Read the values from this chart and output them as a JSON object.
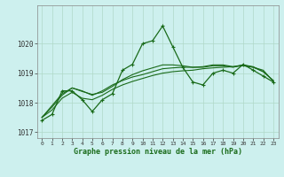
{
  "title": "Graphe pression niveau de la mer (hPa)",
  "background_color": "#cdf0ee",
  "grid_color": "#b0d8c8",
  "line_color": "#1a6b1a",
  "ylim": [
    1016.8,
    1021.3
  ],
  "yticks": [
    1017,
    1018,
    1019,
    1020
  ],
  "xticks": [
    0,
    1,
    2,
    3,
    4,
    5,
    6,
    7,
    8,
    9,
    10,
    11,
    12,
    13,
    14,
    15,
    16,
    17,
    18,
    19,
    20,
    21,
    22,
    23
  ],
  "series1": [
    1017.4,
    1017.6,
    1018.4,
    1018.4,
    1018.1,
    1017.7,
    1018.1,
    1018.3,
    1019.1,
    1019.3,
    1020.0,
    1020.1,
    1020.6,
    1019.9,
    1019.2,
    1018.7,
    1018.6,
    1019.0,
    1019.1,
    1019.0,
    1019.3,
    1019.1,
    1018.9,
    1018.7
  ],
  "series2": [
    1017.5,
    1017.75,
    1018.15,
    1018.35,
    1018.15,
    1018.1,
    1018.25,
    1018.45,
    1018.6,
    1018.72,
    1018.82,
    1018.92,
    1019.0,
    1019.05,
    1019.08,
    1019.1,
    1019.15,
    1019.18,
    1019.2,
    1019.22,
    1019.25,
    1019.2,
    1019.1,
    1018.72
  ],
  "series3": [
    1017.5,
    1017.85,
    1018.25,
    1018.5,
    1018.4,
    1018.25,
    1018.4,
    1018.6,
    1018.75,
    1018.87,
    1018.95,
    1019.05,
    1019.15,
    1019.18,
    1019.2,
    1019.2,
    1019.22,
    1019.28,
    1019.28,
    1019.22,
    1019.28,
    1019.22,
    1019.05,
    1018.75
  ],
  "series4": [
    1017.5,
    1017.9,
    1018.3,
    1018.5,
    1018.38,
    1018.28,
    1018.35,
    1018.55,
    1018.78,
    1018.95,
    1019.08,
    1019.18,
    1019.28,
    1019.28,
    1019.25,
    1019.2,
    1019.2,
    1019.25,
    1019.25,
    1019.2,
    1019.28,
    1019.2,
    1019.05,
    1018.75
  ]
}
